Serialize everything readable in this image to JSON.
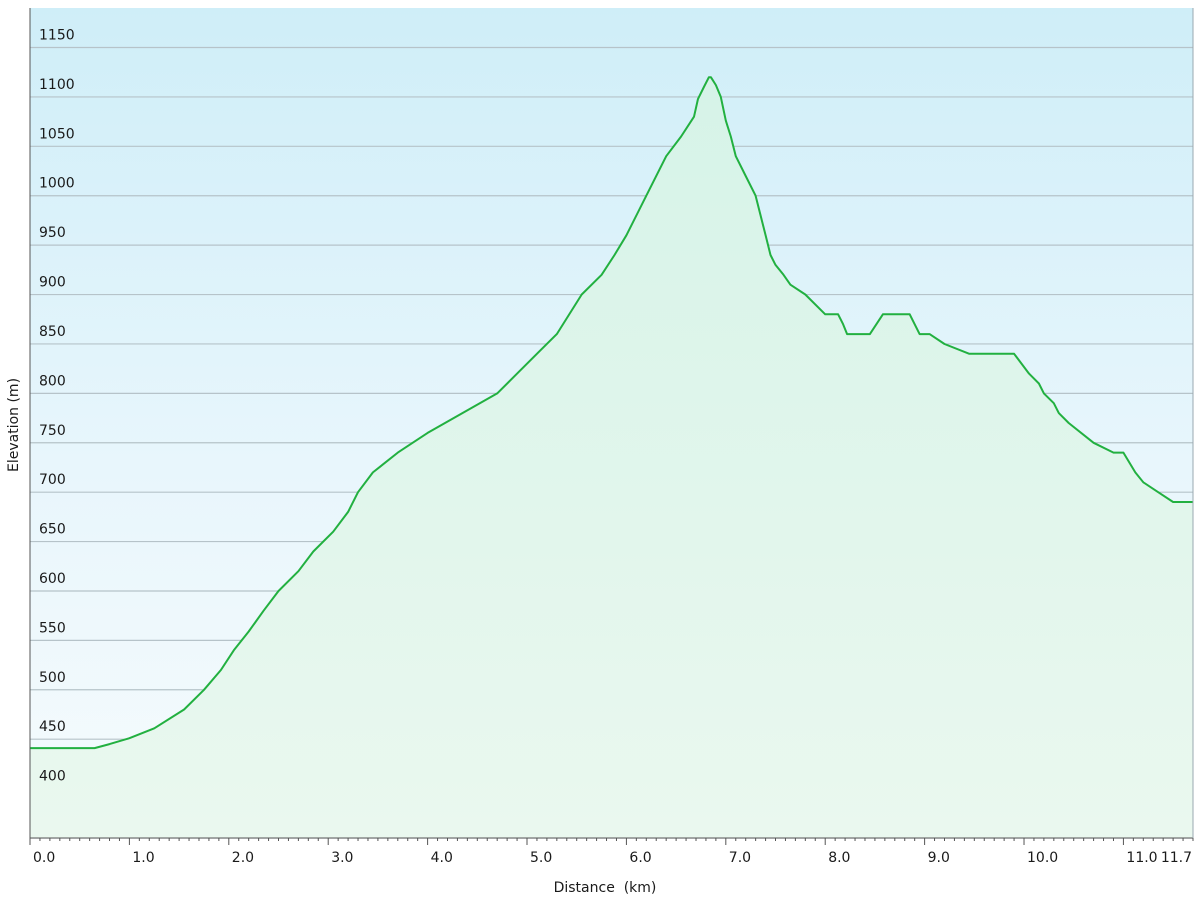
{
  "chart_data": {
    "type": "area",
    "title": "",
    "xlabel": "Distance  (km)",
    "ylabel": "Elevation (m)",
    "xlim": [
      0,
      11.7
    ],
    "ylim": [
      350,
      1190
    ],
    "x_ticks": [
      0,
      1,
      2,
      3,
      4,
      5,
      6,
      7,
      8,
      9,
      10,
      11,
      11.7
    ],
    "x_tick_labels": [
      "0.0",
      "1.0",
      "2.0",
      "3.0",
      "4.0",
      "5.0",
      "6.0",
      "7.0",
      "8.0",
      "9.0",
      "10.0",
      "11.0",
      "11.7"
    ],
    "y_ticks": [
      400,
      450,
      500,
      550,
      600,
      650,
      700,
      750,
      800,
      850,
      900,
      950,
      1000,
      1050,
      1100,
      1150
    ],
    "y_tick_labels": [
      "400",
      "450",
      "500",
      "550",
      "600",
      "650",
      "700",
      "750",
      "800",
      "850",
      "900",
      "950",
      "1000",
      "1050",
      "1100",
      "1150"
    ],
    "grid": true,
    "line_color": "#22b040",
    "series": [
      {
        "x": [
          0,
          0.3,
          0.65,
          0.8,
          1.0,
          1.25,
          1.55,
          1.75,
          1.92,
          2.05,
          2.2,
          2.35,
          2.5,
          2.7,
          2.85,
          3.05,
          3.2,
          3.3,
          3.45,
          3.7,
          4.0,
          4.35,
          4.7,
          4.9,
          5.1,
          5.3,
          5.55,
          5.75,
          5.88,
          6.0,
          6.2,
          6.4,
          6.55,
          6.68,
          6.72,
          6.78,
          6.83,
          6.85,
          6.9,
          6.95,
          7.0,
          7.05,
          7.1,
          7.2,
          7.3,
          7.35,
          7.4,
          7.45,
          7.5,
          7.58,
          7.65,
          7.8,
          8.0,
          8.13,
          8.18,
          8.22,
          8.28,
          8.33,
          8.45,
          8.58,
          8.63,
          8.72,
          8.85,
          8.95,
          9.05,
          9.2,
          9.45,
          9.65,
          9.9,
          10.05,
          10.15,
          10.2,
          10.3,
          10.35,
          10.45,
          10.7,
          10.9,
          11.0,
          11.12,
          11.2,
          11.35,
          11.5,
          11.7
        ],
        "y": [
          441,
          441,
          441,
          445,
          451,
          461,
          480,
          500,
          520,
          540,
          559,
          580,
          600,
          620,
          640,
          660,
          680,
          700,
          720,
          740,
          760,
          780,
          800,
          820,
          840,
          860,
          900,
          920,
          940,
          960,
          1000,
          1040,
          1060,
          1080,
          1098,
          1110,
          1120,
          1120,
          1112,
          1100,
          1076,
          1060,
          1040,
          1020,
          1000,
          980,
          960,
          940,
          930,
          920,
          910,
          900,
          880,
          880,
          870,
          860,
          860,
          860,
          860,
          880,
          880,
          880,
          880,
          860,
          860,
          850,
          840,
          840,
          840,
          820,
          810,
          800,
          790,
          780,
          770,
          750,
          740,
          740,
          720,
          710,
          700,
          690,
          690
        ]
      }
    ]
  }
}
